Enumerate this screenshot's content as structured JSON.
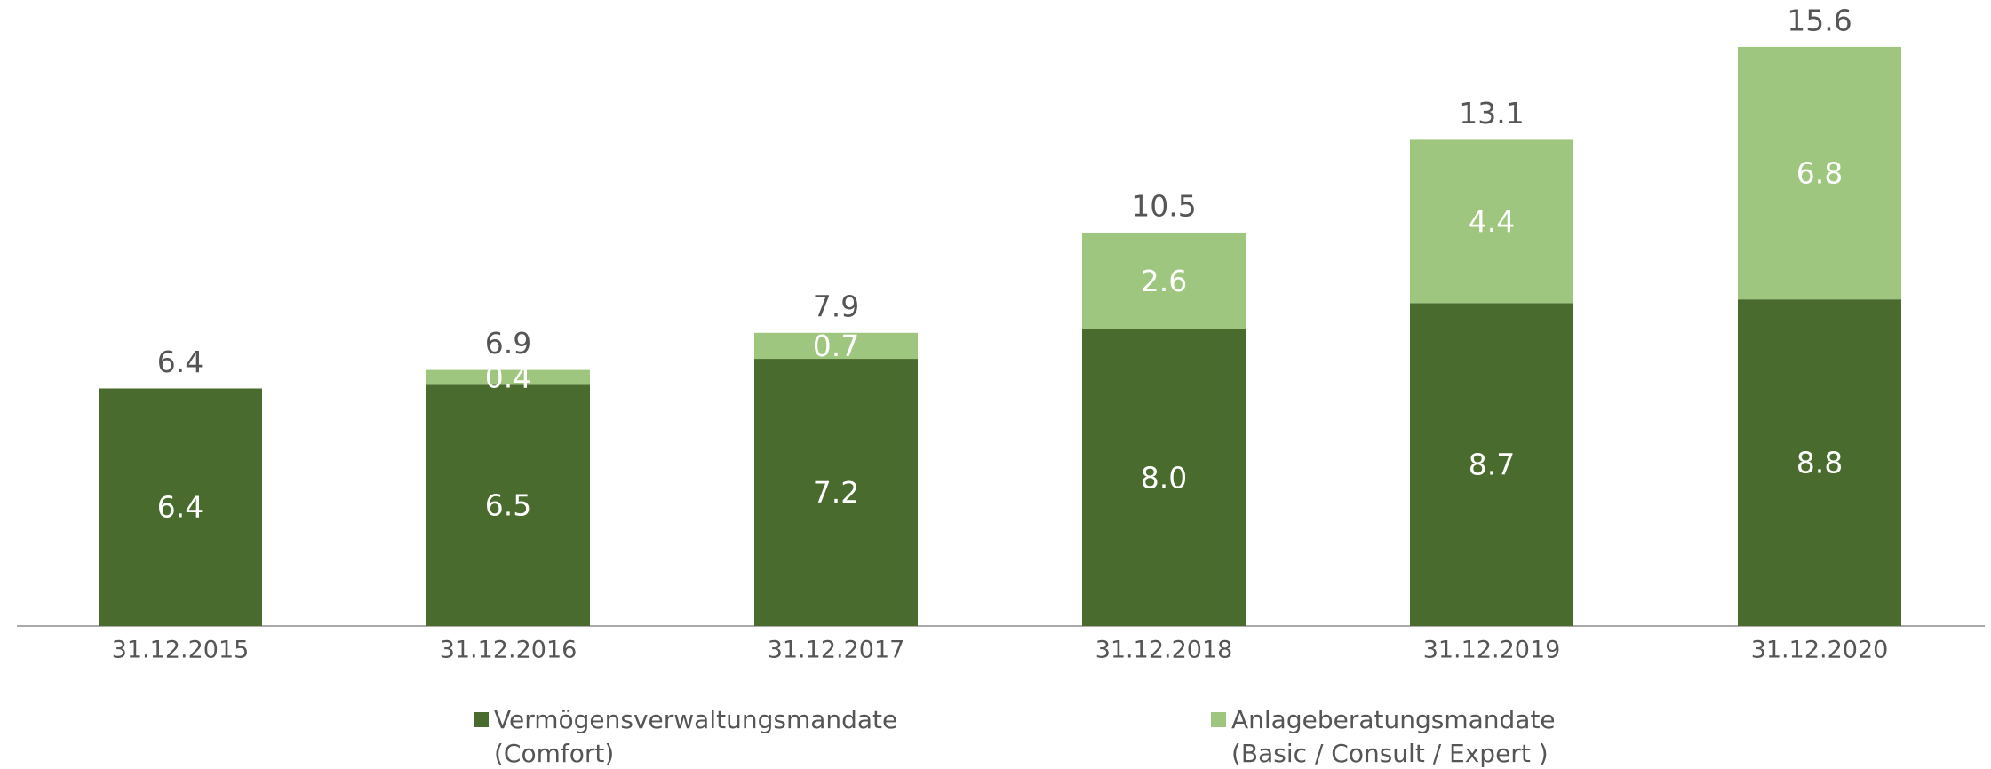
{
  "chart_data": {
    "type": "stacked-bar",
    "categories": [
      "31.12.2015",
      "31.12.2016",
      "31.12.2017",
      "31.12.2018",
      "31.12.2019",
      "31.12.2020"
    ],
    "series": [
      {
        "name": "Vermögensverwaltungsmandate\n(Comfort)",
        "color": "#4a6b2e",
        "values": [
          6.4,
          6.5,
          7.2,
          8.0,
          8.7,
          8.8
        ],
        "value_labels": [
          "6.4",
          "6.5",
          "7.2",
          "8.0",
          "8.7",
          "8.8"
        ]
      },
      {
        "name": "Anlageberatungsmandate\n(Basic / Consult / Expert )",
        "color": "#9fc67e",
        "values": [
          null,
          0.4,
          0.7,
          2.6,
          4.4,
          6.8
        ]
      }
    ],
    "totals": [
      6.4,
      6.9,
      7.9,
      10.5,
      13.1,
      15.6
    ]
  }
}
